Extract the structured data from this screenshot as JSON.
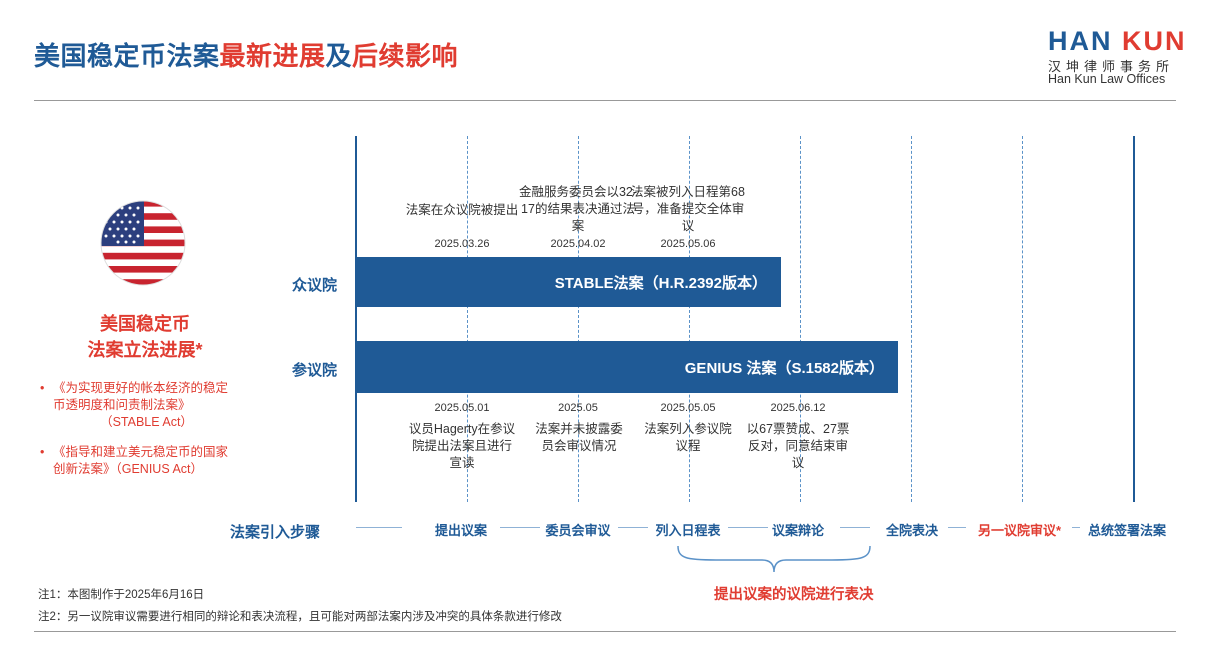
{
  "title": {
    "part1": "美国稳定币法案",
    "part2": "最新进展",
    "part3": "及",
    "part4": "后续影响"
  },
  "logo": {
    "han": "HAN",
    "kun": "KUN",
    "chinese": "汉坤律师事务所",
    "english": "Han Kun Law Offices"
  },
  "side": {
    "title_line1": "美国稳定币",
    "title_line2": "法案立法进展*",
    "bullet_marker": "•",
    "bullets": [
      {
        "text": "《为实现更好的帐本经济的稳定币透明度和问责制法案》",
        "sub": "（STABLE Act）"
      },
      {
        "text": "《指导和建立美元稳定币的国家创新法案》（GENIUS Act）"
      }
    ]
  },
  "houses": {
    "house": "众议院",
    "senate": "参议院"
  },
  "bars": {
    "house": "STABLE法案（H.R.2392版本）",
    "senate": "GENIUS 法案（S.1582版本）"
  },
  "house_events": [
    {
      "text": "法案在众议院被提出",
      "date": "2025.03.26"
    },
    {
      "text": "金融服务委员会以32-17的结果表决通过法案",
      "date": "2025.04.02"
    },
    {
      "text": "法案被列入日程第68号，准备提交全体审议",
      "date": "2025.05.06"
    }
  ],
  "senate_events": [
    {
      "text": "议员Hagerty在参议院提出法案且进行宣读",
      "date": "2025.05.01"
    },
    {
      "text": "法案并未披露委员会审议情况",
      "date": "2025.05"
    },
    {
      "text": "法案列入参议院议程",
      "date": "2025.05.05"
    },
    {
      "text": "以67票赞成、27票反对，同意结束审议",
      "date": "2025.06.12"
    }
  ],
  "steps_label": "法案引入步骤",
  "steps": [
    "提出议案",
    "委员会审议",
    "列入日程表",
    "议案辩论",
    "全院表决",
    "另一议院审议*",
    "总统签署法案"
  ],
  "brace_label": "提出议案的议院进行表决",
  "notes": [
    "注1：本图制作于2025年6月16日",
    "注2：另一议院审议需要进行相同的辩论和表决流程，且可能对两部法案内涉及冲突的具体条款进行修改"
  ],
  "colors": {
    "blue": "#1f5a96",
    "red": "#e03c31"
  }
}
